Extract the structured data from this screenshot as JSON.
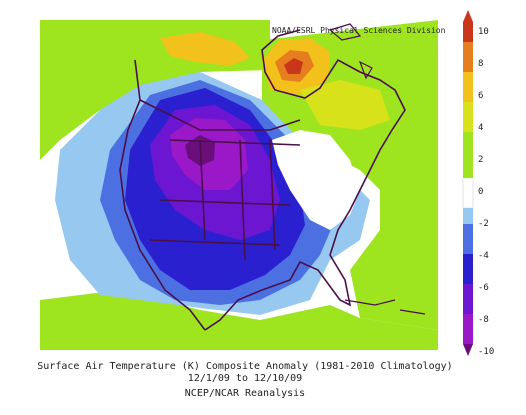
{
  "header": {
    "credit": "NOAA/ESRL Physical Sciences Division"
  },
  "caption": {
    "line1": "Surface Air Temperature (K) Composite Anomaly (1981-2010 Climatology)",
    "line2": "12/1/09  to 12/10/09",
    "line3": "NCEP/NCAR Reanalysis"
  },
  "colorbar": {
    "ticks": [
      "10",
      "8",
      "6",
      "4",
      "2",
      "0",
      "-2",
      "-4",
      "-6",
      "-8",
      "-10"
    ],
    "colors": [
      "#c8371c",
      "#e67d1f",
      "#f3c11c",
      "#d8e21b",
      "#9ee520",
      "#ffffff",
      "#96c8f0",
      "#4c70e2",
      "#2a20d0",
      "#6c16d2",
      "#9a18c8",
      "#6a0f7a"
    ]
  }
}
